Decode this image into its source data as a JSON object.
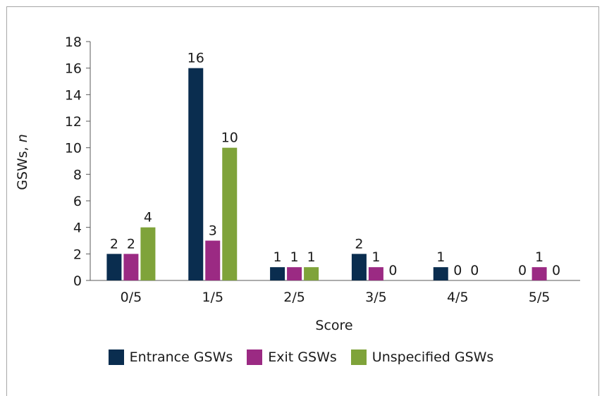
{
  "chart_data": {
    "type": "bar",
    "categories": [
      "0/5",
      "1/5",
      "2/5",
      "3/5",
      "4/5",
      "5/5"
    ],
    "series": [
      {
        "name": "Entrance GSWs",
        "values": [
          2,
          16,
          1,
          2,
          1,
          0
        ],
        "color": "#0a2d4f"
      },
      {
        "name": "Exit GSWs",
        "values": [
          2,
          3,
          1,
          1,
          0,
          1
        ],
        "color": "#9b2a83"
      },
      {
        "name": "Unspecified GSWs",
        "values": [
          4,
          10,
          1,
          0,
          0,
          0
        ],
        "color": "#7fa33a"
      }
    ],
    "xlabel": "Score",
    "ylabel": "GSWs, n",
    "ylabel_main": "GSWs, ",
    "ylabel_italic": "n",
    "ylim": [
      0,
      18
    ],
    "yticks": [
      "0",
      "2",
      "4",
      "6",
      "8",
      "10",
      "12",
      "14",
      "16",
      "18"
    ],
    "legend_position": "bottom",
    "grid": false
  }
}
